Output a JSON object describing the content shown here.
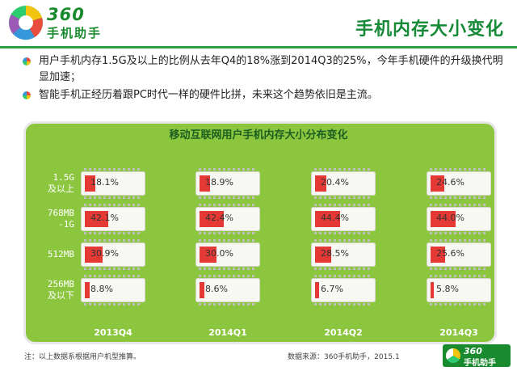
{
  "brand": {
    "number": "360",
    "name": "手机助手"
  },
  "page_title": "手机内存大小变化",
  "bullets": [
    "用户手机内存1.5G及以上的比例从去年Q4的18%涨到2014Q3的25%，今年手机硬件的升级换代明显加速；",
    "智能手机正经历着跟PC时代一样的硬件比拼，未来这个趋势依旧是主流。"
  ],
  "chart_data": {
    "type": "bar",
    "title": "移动互联网用户手机内存大小分布变化",
    "categories": [
      "2013Q4",
      "2014Q1",
      "2014Q2",
      "2014Q3"
    ],
    "rows": [
      {
        "label_lines": [
          "1.5G",
          "及以上"
        ],
        "values": [
          18.1,
          18.9,
          20.4,
          24.6
        ]
      },
      {
        "label_lines": [
          "768MB",
          "-1G"
        ],
        "values": [
          42.1,
          42.4,
          44.4,
          44.0
        ]
      },
      {
        "label_lines": [
          "512MB"
        ],
        "values": [
          30.9,
          30.0,
          28.5,
          25.6
        ]
      },
      {
        "label_lines": [
          "256MB",
          "及以下"
        ],
        "values": [
          8.8,
          8.6,
          6.7,
          5.8
        ]
      }
    ],
    "unit": "%",
    "colors": {
      "fill": "#e53935",
      "panel": "#8cc63f",
      "chip": "#f7f7f4"
    }
  },
  "footer": {
    "note": "注：以上数据系根据用户机型推算。",
    "source": "数据来源：360手机助手，2015.1"
  }
}
